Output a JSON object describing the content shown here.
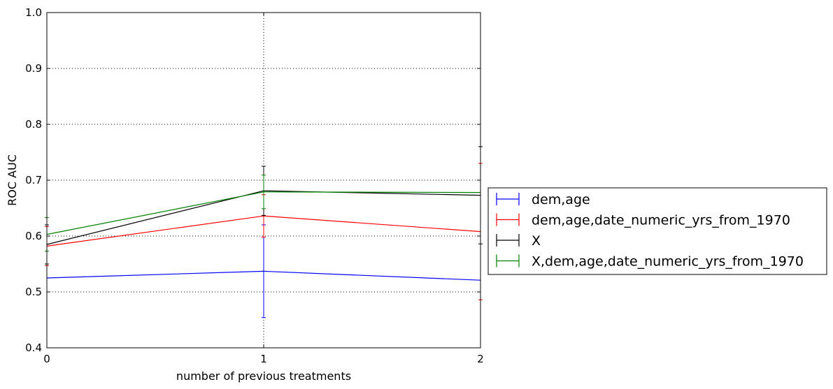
{
  "chart_data": {
    "type": "line",
    "title": "",
    "xlabel": "number of previous treatments",
    "ylabel": "ROC AUC",
    "x": [
      0,
      1,
      2
    ],
    "xlim": [
      0,
      2
    ],
    "ylim": [
      0.4,
      1.0
    ],
    "xticks": [
      "0",
      "1",
      "2"
    ],
    "yticks": [
      "0.4",
      "0.5",
      "0.6",
      "0.7",
      "0.8",
      "0.9",
      "1.0"
    ],
    "grid": true,
    "legend_position": "outside-right",
    "series": [
      {
        "name": "dem,age",
        "color": "#0000ff",
        "values": [
          0.525,
          0.537,
          0.521
        ],
        "errors": [
          0.0,
          0.083,
          0.0
        ]
      },
      {
        "name": "dem,age,date_numeric_yrs_from_1970",
        "color": "#ff0000",
        "values": [
          0.582,
          0.636,
          0.608
        ],
        "errors": [
          0.035,
          0.038,
          0.122
        ]
      },
      {
        "name": "X",
        "color": "#000000",
        "values": [
          0.585,
          0.681,
          0.673
        ],
        "errors": [
          0.035,
          0.044,
          0.087
        ]
      },
      {
        "name": "X,dem,age,date_numeric_yrs_from_1970",
        "color": "#008000",
        "values": [
          0.603,
          0.679,
          0.678
        ],
        "errors": [
          0.03,
          0.03,
          0.0
        ]
      }
    ]
  }
}
